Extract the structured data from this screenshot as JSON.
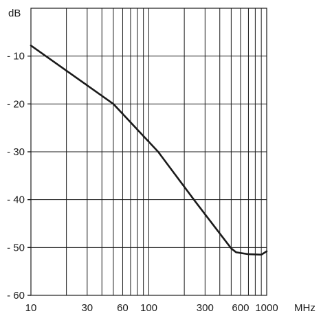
{
  "chart_data": {
    "type": "line",
    "title": "",
    "xlabel": "MHz",
    "ylabel": "dB",
    "x_scale": "log",
    "xlim": [
      10,
      1000
    ],
    "ylim": [
      -60,
      0
    ],
    "grid": true,
    "x_ticks": [
      {
        "value": 10,
        "label": "10"
      },
      {
        "value": 30,
        "label": "30"
      },
      {
        "value": 60,
        "label": "60"
      },
      {
        "value": 100,
        "label": "100"
      },
      {
        "value": 300,
        "label": "300"
      },
      {
        "value": 600,
        "label": "600"
      },
      {
        "value": 1000,
        "label": "1000"
      }
    ],
    "x_gridlines": [
      10,
      20,
      30,
      40,
      50,
      60,
      70,
      80,
      90,
      100,
      200,
      300,
      400,
      500,
      600,
      700,
      800,
      900,
      1000
    ],
    "y_ticks": [
      {
        "value": -10,
        "label": "- 10"
      },
      {
        "value": -20,
        "label": "- 20"
      },
      {
        "value": -30,
        "label": "- 30"
      },
      {
        "value": -40,
        "label": "- 40"
      },
      {
        "value": -50,
        "label": "- 50"
      },
      {
        "value": -60,
        "label": "- 60"
      }
    ],
    "series": [
      {
        "x": [
          10,
          50,
          120,
          250,
          500,
          550,
          700,
          900,
          1000
        ],
        "y": [
          -7.8,
          -20,
          -30,
          -40.5,
          -50.2,
          -51,
          -51.4,
          -51.5,
          -50.8
        ]
      }
    ]
  },
  "colors": {
    "line": "#1a1a1a",
    "background": "#ffffff"
  }
}
